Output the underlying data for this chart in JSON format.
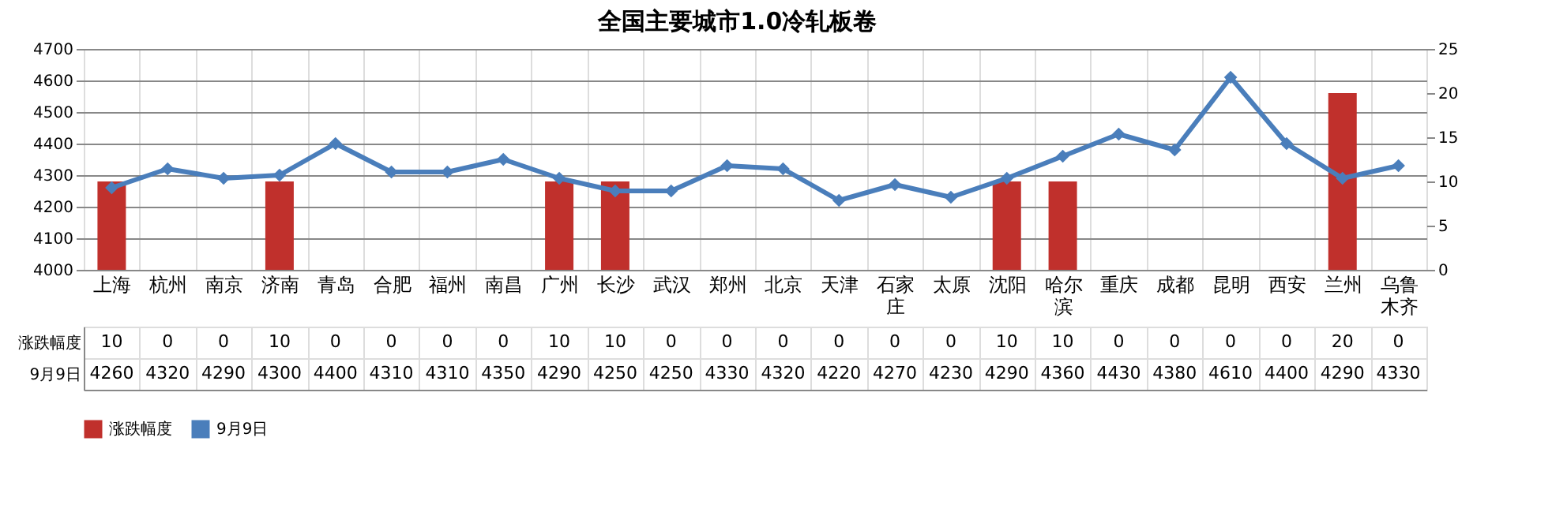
{
  "chart_data": {
    "type": "bar",
    "title": "全国主要城市1.0冷轧板卷",
    "categories": [
      "上海",
      "杭州",
      "南京",
      "济南",
      "青岛",
      "合肥",
      "福州",
      "南昌",
      "广州",
      "长沙",
      "武汉",
      "郑州",
      "北京",
      "天津",
      "石家庄",
      "太原",
      "沈阳",
      "哈尔滨",
      "重庆",
      "成都",
      "昆明",
      "西安",
      "兰州",
      "乌鲁木齐"
    ],
    "series": [
      {
        "name": "涨跌幅度",
        "axis": "y2",
        "color": "#c0302c",
        "values": [
          10,
          0,
          0,
          10,
          0,
          0,
          0,
          0,
          10,
          10,
          0,
          0,
          0,
          0,
          0,
          0,
          10,
          10,
          0,
          0,
          0,
          0,
          20,
          0
        ]
      },
      {
        "name": "9月9日",
        "type": "line",
        "color": "#4a7ebb",
        "values": [
          4260,
          4320,
          4290,
          4300,
          4400,
          4310,
          4310,
          4350,
          4290,
          4250,
          4250,
          4330,
          4320,
          4220,
          4270,
          4230,
          4290,
          4360,
          4430,
          4380,
          4610,
          4400,
          4290,
          4330
        ]
      }
    ],
    "ylim": [
      4000,
      4700
    ],
    "yticks": [
      4000,
      4100,
      4200,
      4300,
      4400,
      4500,
      4600,
      4700
    ],
    "y2lim": [
      0,
      25
    ],
    "y2ticks": [
      0,
      5,
      10,
      15,
      20,
      25
    ],
    "grid": "y",
    "legend": "bottom",
    "marker": "diamond",
    "data_labels": true
  }
}
